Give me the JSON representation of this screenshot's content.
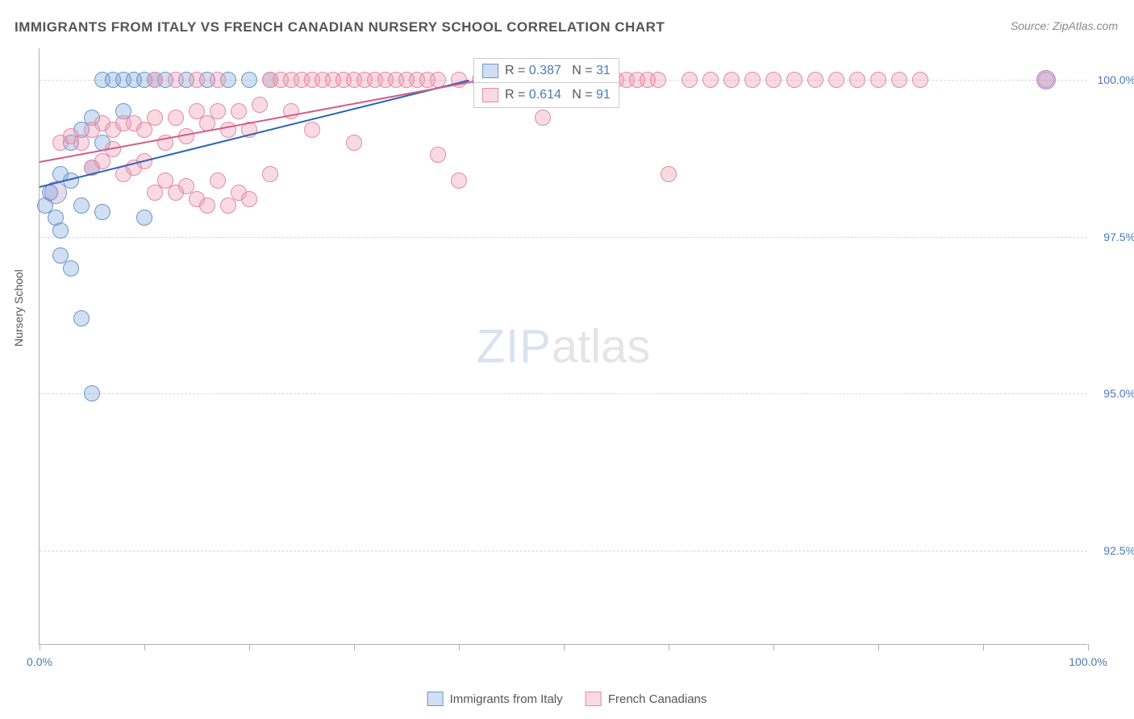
{
  "title": "IMMIGRANTS FROM ITALY VS FRENCH CANADIAN NURSERY SCHOOL CORRELATION CHART",
  "source": "Source: ZipAtlas.com",
  "y_axis_label": "Nursery School",
  "watermark_zip": "ZIP",
  "watermark_atlas": "atlas",
  "chart": {
    "type": "scatter",
    "background_color": "#ffffff",
    "grid_color": "#d8d8d8",
    "axis_color": "#b0b0b0",
    "tick_label_color": "#4a7ab8",
    "xlim": [
      0,
      100
    ],
    "ylim": [
      91.0,
      100.5
    ],
    "yticks": [
      {
        "v": 100.0,
        "label": "100.0%"
      },
      {
        "v": 97.5,
        "label": "97.5%"
      },
      {
        "v": 95.0,
        "label": "95.0%"
      },
      {
        "v": 92.5,
        "label": "92.5%"
      }
    ],
    "xticks_major": [
      0,
      50,
      100
    ],
    "xticks_minor": [
      10,
      20,
      30,
      40,
      60,
      70,
      80,
      90
    ],
    "xtick_labels": [
      {
        "v": 0,
        "label": "0.0%"
      },
      {
        "v": 100,
        "label": "100.0%"
      }
    ],
    "point_radius": 10,
    "series": [
      {
        "name": "Immigrants from Italy",
        "fill": "rgba(122,162,219,0.35)",
        "stroke": "#6b94cf",
        "R": "0.387",
        "N": "31",
        "trend": {
          "x1": 0,
          "y1": 98.3,
          "x2": 41,
          "y2": 100.0,
          "color": "#2b63b8"
        },
        "points": [
          [
            0.5,
            98.0
          ],
          [
            1,
            98.2
          ],
          [
            1.5,
            97.8
          ],
          [
            2,
            98.5
          ],
          [
            2,
            97.2
          ],
          [
            3,
            98.4
          ],
          [
            3,
            97.0
          ],
          [
            4,
            98.0
          ],
          [
            4,
            96.2
          ],
          [
            5,
            98.6
          ],
          [
            5,
            95.0
          ],
          [
            6,
            100.0
          ],
          [
            6,
            97.9
          ],
          [
            7,
            100.0
          ],
          [
            8,
            100.0
          ],
          [
            8,
            99.5
          ],
          [
            9,
            100.0
          ],
          [
            10,
            100.0
          ],
          [
            10,
            97.8
          ],
          [
            11,
            100.0
          ],
          [
            12,
            100.0
          ],
          [
            14,
            100.0
          ],
          [
            16,
            100.0
          ],
          [
            18,
            100.0
          ],
          [
            20,
            100.0
          ],
          [
            22,
            100.0
          ],
          [
            2,
            97.6
          ],
          [
            3,
            99.0
          ],
          [
            4,
            99.2
          ],
          [
            5,
            99.4
          ],
          [
            6,
            99.0
          ]
        ]
      },
      {
        "name": "French Canadians",
        "fill": "rgba(239,150,175,0.35)",
        "stroke": "#e38aa5",
        "R": "0.614",
        "N": "91",
        "trend": {
          "x1": 0,
          "y1": 98.7,
          "x2": 42,
          "y2": 100.0,
          "color": "#d45b86"
        },
        "points": [
          [
            2,
            99.0
          ],
          [
            3,
            99.1
          ],
          [
            4,
            99.0
          ],
          [
            5,
            99.2
          ],
          [
            5,
            98.6
          ],
          [
            6,
            99.3
          ],
          [
            6,
            98.7
          ],
          [
            7,
            99.2
          ],
          [
            7,
            98.9
          ],
          [
            8,
            99.3
          ],
          [
            8,
            98.5
          ],
          [
            9,
            99.3
          ],
          [
            9,
            98.6
          ],
          [
            10,
            99.2
          ],
          [
            10,
            98.7
          ],
          [
            11,
            99.4
          ],
          [
            11,
            98.2
          ],
          [
            12,
            99.0
          ],
          [
            12,
            98.4
          ],
          [
            13,
            99.4
          ],
          [
            13,
            98.2
          ],
          [
            14,
            99.1
          ],
          [
            14,
            98.3
          ],
          [
            15,
            99.5
          ],
          [
            15,
            98.1
          ],
          [
            16,
            99.3
          ],
          [
            16,
            98.0
          ],
          [
            17,
            99.5
          ],
          [
            17,
            98.4
          ],
          [
            18,
            99.2
          ],
          [
            18,
            98.0
          ],
          [
            19,
            99.5
          ],
          [
            19,
            98.2
          ],
          [
            20,
            99.2
          ],
          [
            20,
            98.1
          ],
          [
            21,
            99.6
          ],
          [
            22,
            100.0
          ],
          [
            22,
            98.5
          ],
          [
            23,
            100.0
          ],
          [
            24,
            100.0
          ],
          [
            24,
            99.5
          ],
          [
            25,
            100.0
          ],
          [
            26,
            100.0
          ],
          [
            26,
            99.2
          ],
          [
            27,
            100.0
          ],
          [
            28,
            100.0
          ],
          [
            29,
            100.0
          ],
          [
            30,
            100.0
          ],
          [
            30,
            99.0
          ],
          [
            31,
            100.0
          ],
          [
            32,
            100.0
          ],
          [
            33,
            100.0
          ],
          [
            34,
            100.0
          ],
          [
            35,
            100.0
          ],
          [
            36,
            100.0
          ],
          [
            37,
            100.0
          ],
          [
            38,
            100.0
          ],
          [
            38,
            98.8
          ],
          [
            40,
            100.0
          ],
          [
            40,
            98.4
          ],
          [
            42,
            100.0
          ],
          [
            44,
            100.0
          ],
          [
            46,
            100.0
          ],
          [
            48,
            100.0
          ],
          [
            48,
            99.4
          ],
          [
            50,
            100.0
          ],
          [
            52,
            100.0
          ],
          [
            54,
            100.0
          ],
          [
            55,
            100.0
          ],
          [
            56,
            100.0
          ],
          [
            57,
            100.0
          ],
          [
            58,
            100.0
          ],
          [
            59,
            100.0
          ],
          [
            60,
            98.5
          ],
          [
            62,
            100.0
          ],
          [
            64,
            100.0
          ],
          [
            66,
            100.0
          ],
          [
            68,
            100.0
          ],
          [
            70,
            100.0
          ],
          [
            72,
            100.0
          ],
          [
            74,
            100.0
          ],
          [
            76,
            100.0
          ],
          [
            78,
            100.0
          ],
          [
            80,
            100.0
          ],
          [
            82,
            100.0
          ],
          [
            84,
            100.0
          ],
          [
            96,
            100.0
          ],
          [
            11,
            100.0
          ],
          [
            13,
            100.0
          ],
          [
            15,
            100.0
          ],
          [
            17,
            100.0
          ]
        ]
      }
    ],
    "extra_points": [
      {
        "x": 1.5,
        "y": 98.2,
        "r": 14,
        "fill": "rgba(160,140,200,0.3)",
        "stroke": "#9a88c4"
      },
      {
        "x": 96.0,
        "y": 100.0,
        "r": 12,
        "fill": "rgba(160,140,200,0.35)",
        "stroke": "#9a88c4"
      }
    ],
    "stats_box_label_R": "R = ",
    "stats_box_label_N": "N = ",
    "legend_series1": "Immigrants from Italy",
    "legend_series2": "French Canadians"
  }
}
